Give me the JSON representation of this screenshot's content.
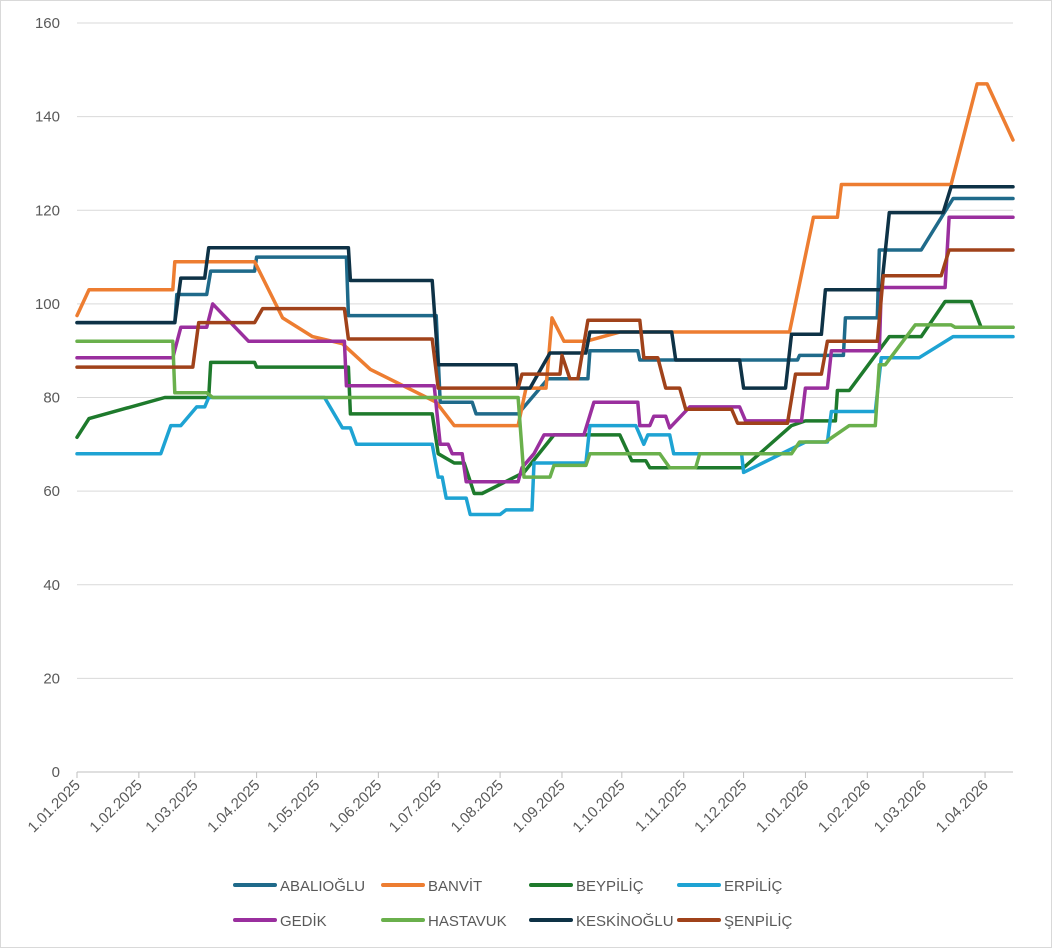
{
  "chart_data": {
    "type": "line",
    "title": "",
    "xlabel": "",
    "ylabel": "",
    "ylim": [
      0,
      160
    ],
    "yticks": [
      0,
      20,
      40,
      60,
      80,
      100,
      120,
      140,
      160
    ],
    "xlim": [
      "2025-01-01",
      "2026-04-15"
    ],
    "xticks": [
      {
        "date": "2025-01-01",
        "label": "1.01.2025"
      },
      {
        "date": "2025-02-01",
        "label": "1.02.2025"
      },
      {
        "date": "2025-03-01",
        "label": "1.03.2025"
      },
      {
        "date": "2025-04-01",
        "label": "1.04.2025"
      },
      {
        "date": "2025-05-01",
        "label": "1.05.2025"
      },
      {
        "date": "2025-06-01",
        "label": "1.06.2025"
      },
      {
        "date": "2025-07-01",
        "label": "1.07.2025"
      },
      {
        "date": "2025-08-01",
        "label": "1.08.2025"
      },
      {
        "date": "2025-09-01",
        "label": "1.09.2025"
      },
      {
        "date": "2025-10-01",
        "label": "1.10.2025"
      },
      {
        "date": "2025-11-01",
        "label": "1.11.2025"
      },
      {
        "date": "2025-12-01",
        "label": "1.12.2025"
      },
      {
        "date": "2026-01-01",
        "label": "1.01.2026"
      },
      {
        "date": "2026-02-01",
        "label": "1.02.2026"
      },
      {
        "date": "2026-03-01",
        "label": "1.03.2026"
      },
      {
        "date": "2026-04-01",
        "label": "1.04.2026"
      }
    ],
    "grid": true,
    "legend_position": "bottom",
    "series": [
      {
        "name": "ABALIOĞLU",
        "color": "#1f6a8a",
        "points": [
          [
            "2025-01-01",
            96
          ],
          [
            "2025-02-19",
            96
          ],
          [
            "2025-02-20",
            102
          ],
          [
            "2025-03-07",
            102
          ],
          [
            "2025-03-09",
            107
          ],
          [
            "2025-03-31",
            107
          ],
          [
            "2025-04-01",
            110
          ],
          [
            "2025-05-16",
            110
          ],
          [
            "2025-05-17",
            97.5
          ],
          [
            "2025-06-30",
            97.5
          ],
          [
            "2025-07-02",
            79
          ],
          [
            "2025-07-18",
            79
          ],
          [
            "2025-07-20",
            76.5
          ],
          [
            "2025-08-10",
            76.5
          ],
          [
            "2025-08-25",
            84
          ],
          [
            "2025-09-14",
            84
          ],
          [
            "2025-09-15",
            90
          ],
          [
            "2025-10-09",
            90
          ],
          [
            "2025-10-10",
            88
          ],
          [
            "2025-12-28",
            88
          ],
          [
            "2025-12-29",
            89
          ],
          [
            "2026-01-20",
            89
          ],
          [
            "2026-01-21",
            97
          ],
          [
            "2026-02-06",
            97
          ],
          [
            "2026-02-07",
            111.5
          ],
          [
            "2026-02-28",
            111.5
          ],
          [
            "2026-03-16",
            122.5
          ],
          [
            "2026-04-15",
            122.5
          ]
        ]
      },
      {
        "name": "BANVİT",
        "color": "#ed7d31",
        "points": [
          [
            "2025-01-01",
            97.5
          ],
          [
            "2025-01-07",
            103
          ],
          [
            "2025-02-18",
            103
          ],
          [
            "2025-02-19",
            109
          ],
          [
            "2025-03-31",
            109
          ],
          [
            "2025-04-14",
            97
          ],
          [
            "2025-04-29",
            93
          ],
          [
            "2025-05-14",
            91.5
          ],
          [
            "2025-05-28",
            86
          ],
          [
            "2025-06-30",
            79
          ],
          [
            "2025-07-09",
            74
          ],
          [
            "2025-08-10",
            74
          ],
          [
            "2025-08-14",
            82
          ],
          [
            "2025-08-24",
            82
          ],
          [
            "2025-08-27",
            97
          ],
          [
            "2025-09-02",
            92
          ],
          [
            "2025-09-13",
            92
          ],
          [
            "2025-09-30",
            94
          ],
          [
            "2025-12-24",
            94
          ],
          [
            "2026-01-05",
            118.5
          ],
          [
            "2026-01-17",
            118.5
          ],
          [
            "2026-01-19",
            125.5
          ],
          [
            "2026-03-15",
            125.5
          ],
          [
            "2026-03-28",
            147
          ],
          [
            "2026-04-02",
            147
          ],
          [
            "2026-04-15",
            135
          ]
        ]
      },
      {
        "name": "BEYPİLİÇ",
        "color": "#1e7a2c",
        "points": [
          [
            "2025-01-01",
            71.5
          ],
          [
            "2025-01-07",
            75.5
          ],
          [
            "2025-02-14",
            80
          ],
          [
            "2025-03-08",
            80
          ],
          [
            "2025-03-09",
            87.5
          ],
          [
            "2025-03-31",
            87.5
          ],
          [
            "2025-04-01",
            86.5
          ],
          [
            "2025-05-17",
            86.5
          ],
          [
            "2025-05-18",
            76.5
          ],
          [
            "2025-06-28",
            76.5
          ],
          [
            "2025-07-01",
            68
          ],
          [
            "2025-07-09",
            66
          ],
          [
            "2025-07-14",
            66
          ],
          [
            "2025-07-19",
            59.5
          ],
          [
            "2025-07-23",
            59.5
          ],
          [
            "2025-08-13",
            64
          ],
          [
            "2025-08-28",
            72
          ],
          [
            "2025-09-30",
            72
          ],
          [
            "2025-10-06",
            66.5
          ],
          [
            "2025-10-13",
            66.5
          ],
          [
            "2025-10-15",
            65
          ],
          [
            "2025-12-01",
            65
          ],
          [
            "2025-12-25",
            74
          ],
          [
            "2026-01-01",
            75
          ],
          [
            "2026-01-16",
            75
          ],
          [
            "2026-01-17",
            81.5
          ],
          [
            "2026-01-23",
            81.5
          ],
          [
            "2026-02-12",
            93
          ],
          [
            "2026-02-28",
            93
          ],
          [
            "2026-03-12",
            100.5
          ],
          [
            "2026-03-25",
            100.5
          ],
          [
            "2026-03-30",
            95
          ],
          [
            "2026-04-15",
            95
          ]
        ]
      },
      {
        "name": "ERPİLİÇ",
        "color": "#1ea3d3",
        "points": [
          [
            "2025-01-01",
            68
          ],
          [
            "2025-02-12",
            68
          ],
          [
            "2025-02-17",
            74
          ],
          [
            "2025-02-22",
            74
          ],
          [
            "2025-03-02",
            78
          ],
          [
            "2025-03-06",
            78
          ],
          [
            "2025-03-08",
            80
          ],
          [
            "2025-05-05",
            80
          ],
          [
            "2025-05-14",
            73.5
          ],
          [
            "2025-05-18",
            73.5
          ],
          [
            "2025-05-21",
            70
          ],
          [
            "2025-06-28",
            70
          ],
          [
            "2025-07-01",
            63
          ],
          [
            "2025-07-03",
            63
          ],
          [
            "2025-07-05",
            58.5
          ],
          [
            "2025-07-15",
            58.5
          ],
          [
            "2025-07-17",
            55
          ],
          [
            "2025-08-01",
            55
          ],
          [
            "2025-08-04",
            56
          ],
          [
            "2025-08-17",
            56
          ],
          [
            "2025-08-18",
            66
          ],
          [
            "2025-09-13",
            66
          ],
          [
            "2025-09-15",
            74
          ],
          [
            "2025-10-08",
            74
          ],
          [
            "2025-10-12",
            70
          ],
          [
            "2025-10-14",
            72
          ],
          [
            "2025-10-25",
            72
          ],
          [
            "2025-10-27",
            68
          ],
          [
            "2025-11-30",
            68
          ],
          [
            "2025-12-01",
            64
          ],
          [
            "2026-01-01",
            70.5
          ],
          [
            "2026-01-12",
            70.5
          ],
          [
            "2026-01-14",
            77
          ],
          [
            "2026-02-05",
            77
          ],
          [
            "2026-02-08",
            88.5
          ],
          [
            "2026-02-27",
            88.5
          ],
          [
            "2026-03-16",
            93
          ],
          [
            "2026-04-15",
            93
          ]
        ]
      },
      {
        "name": "GEDİK",
        "color": "#9a2f9e",
        "points": [
          [
            "2025-01-01",
            88.5
          ],
          [
            "2025-02-18",
            88.5
          ],
          [
            "2025-02-22",
            95
          ],
          [
            "2025-03-07",
            95
          ],
          [
            "2025-03-10",
            100
          ],
          [
            "2025-03-28",
            92
          ],
          [
            "2025-05-15",
            92
          ],
          [
            "2025-05-16",
            82.5
          ],
          [
            "2025-06-29",
            82.5
          ],
          [
            "2025-07-02",
            70
          ],
          [
            "2025-07-06",
            70
          ],
          [
            "2025-07-08",
            68
          ],
          [
            "2025-07-13",
            68
          ],
          [
            "2025-07-15",
            62
          ],
          [
            "2025-08-10",
            62
          ],
          [
            "2025-08-12",
            65
          ],
          [
            "2025-08-18",
            68
          ],
          [
            "2025-08-23",
            72
          ],
          [
            "2025-09-12",
            72
          ],
          [
            "2025-09-17",
            79
          ],
          [
            "2025-10-09",
            79
          ],
          [
            "2025-10-10",
            74
          ],
          [
            "2025-10-15",
            74
          ],
          [
            "2025-10-17",
            76
          ],
          [
            "2025-10-23",
            76
          ],
          [
            "2025-10-25",
            73.5
          ],
          [
            "2025-11-04",
            78
          ],
          [
            "2025-11-29",
            78
          ],
          [
            "2025-12-02",
            75
          ],
          [
            "2025-12-30",
            75
          ],
          [
            "2026-01-01",
            82
          ],
          [
            "2026-01-12",
            82
          ],
          [
            "2026-01-14",
            90
          ],
          [
            "2026-02-07",
            90
          ],
          [
            "2026-02-08",
            103.5
          ],
          [
            "2026-03-12",
            103.5
          ],
          [
            "2026-03-14",
            118.5
          ],
          [
            "2026-04-15",
            118.5
          ]
        ]
      },
      {
        "name": "HASTAVUK",
        "color": "#6ab04c",
        "points": [
          [
            "2025-01-01",
            92
          ],
          [
            "2025-02-18",
            92
          ],
          [
            "2025-02-19",
            81
          ],
          [
            "2025-03-07",
            81
          ],
          [
            "2025-03-10",
            80
          ],
          [
            "2025-08-10",
            80
          ],
          [
            "2025-08-13",
            63
          ],
          [
            "2025-08-26",
            63
          ],
          [
            "2025-08-28",
            65.5
          ],
          [
            "2025-09-13",
            65.5
          ],
          [
            "2025-09-15",
            68
          ],
          [
            "2025-10-20",
            68
          ],
          [
            "2025-10-25",
            65
          ],
          [
            "2025-11-07",
            65
          ],
          [
            "2025-11-09",
            68
          ],
          [
            "2025-12-19",
            68
          ],
          [
            "2025-12-25",
            68
          ],
          [
            "2025-12-29",
            70.5
          ],
          [
            "2026-01-11",
            70.5
          ],
          [
            "2026-01-23",
            74
          ],
          [
            "2026-02-05",
            74
          ],
          [
            "2026-02-07",
            87
          ],
          [
            "2026-02-10",
            87
          ],
          [
            "2026-02-25",
            95.5
          ],
          [
            "2026-03-15",
            95.5
          ],
          [
            "2026-03-17",
            95
          ],
          [
            "2026-04-15",
            95
          ]
        ]
      },
      {
        "name": "KESKİNOĞLU",
        "color": "#0e3246",
        "points": [
          [
            "2025-01-01",
            96
          ],
          [
            "2025-02-19",
            96
          ],
          [
            "2025-02-22",
            105.5
          ],
          [
            "2025-03-06",
            105.5
          ],
          [
            "2025-03-08",
            112
          ],
          [
            "2025-05-17",
            112
          ],
          [
            "2025-05-18",
            105
          ],
          [
            "2025-06-28",
            105
          ],
          [
            "2025-07-01",
            87
          ],
          [
            "2025-08-09",
            87
          ],
          [
            "2025-08-10",
            82
          ],
          [
            "2025-08-16",
            82
          ],
          [
            "2025-08-26",
            89.5
          ],
          [
            "2025-09-13",
            89.5
          ],
          [
            "2025-09-15",
            94
          ],
          [
            "2025-10-26",
            94
          ],
          [
            "2025-10-28",
            88
          ],
          [
            "2025-11-29",
            88
          ],
          [
            "2025-12-01",
            82
          ],
          [
            "2025-12-22",
            82
          ],
          [
            "2025-12-25",
            93.5
          ],
          [
            "2026-01-09",
            93.5
          ],
          [
            "2026-01-11",
            103
          ],
          [
            "2026-02-08",
            103
          ],
          [
            "2026-02-12",
            119.5
          ],
          [
            "2026-03-11",
            119.5
          ],
          [
            "2026-03-15",
            125
          ],
          [
            "2026-04-15",
            125
          ]
        ]
      },
      {
        "name": "ŞENPİLİÇ",
        "color": "#a0421a",
        "points": [
          [
            "2025-01-01",
            86.5
          ],
          [
            "2025-02-28",
            86.5
          ],
          [
            "2025-03-03",
            96
          ],
          [
            "2025-03-31",
            96
          ],
          [
            "2025-04-04",
            99
          ],
          [
            "2025-05-15",
            99
          ],
          [
            "2025-05-17",
            92.5
          ],
          [
            "2025-06-28",
            92.5
          ],
          [
            "2025-07-01",
            82
          ],
          [
            "2025-08-10",
            82
          ],
          [
            "2025-08-12",
            85
          ],
          [
            "2025-08-31",
            85
          ],
          [
            "2025-09-01",
            89
          ],
          [
            "2025-09-05",
            84
          ],
          [
            "2025-09-09",
            84
          ],
          [
            "2025-09-14",
            96.5
          ],
          [
            "2025-10-10",
            96.5
          ],
          [
            "2025-10-12",
            88.5
          ],
          [
            "2025-10-19",
            88.5
          ],
          [
            "2025-10-23",
            82
          ],
          [
            "2025-10-30",
            82
          ],
          [
            "2025-11-02",
            77.5
          ],
          [
            "2025-11-25",
            77.5
          ],
          [
            "2025-11-28",
            74.5
          ],
          [
            "2025-12-23",
            74.5
          ],
          [
            "2025-12-27",
            85
          ],
          [
            "2026-01-09",
            85
          ],
          [
            "2026-01-12",
            92
          ],
          [
            "2026-02-06",
            92
          ],
          [
            "2026-02-09",
            106
          ],
          [
            "2026-03-10",
            106
          ],
          [
            "2026-03-14",
            111.5
          ],
          [
            "2026-04-15",
            111.5
          ]
        ]
      }
    ]
  }
}
